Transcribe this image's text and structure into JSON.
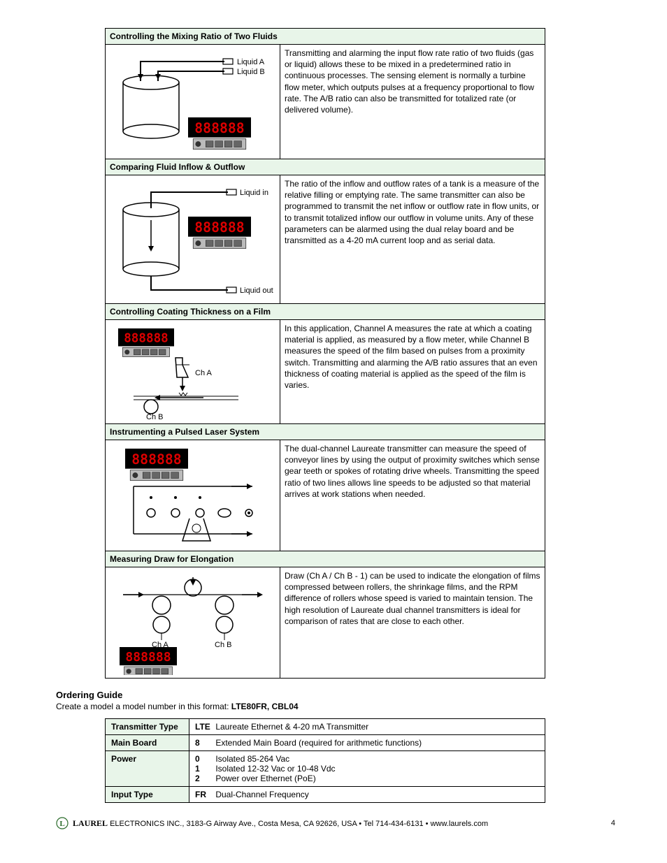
{
  "applications": [
    {
      "title": "Controlling the Mixing Ratio of Two Fluids",
      "diagram": "mixing",
      "description": "Transmitting and alarming the input flow rate ratio of two fluids (gas or liquid) allows these to be mixed in a predetermined ratio in continuous processes. The sensing element is normally a turbine flow meter, which outputs pulses at a frequency proportional to flow rate. The A/B ratio can also be transmitted for totalized rate (or delivered volume)."
    },
    {
      "title": "Comparing Fluid Inflow & Outflow",
      "diagram": "inflow",
      "description": "The ratio of the inflow and outflow rates of a tank is a measure of the relative filling or emptying rate. The same transmitter can also be programmed to transmit the net inflow or outflow rate in flow units, or to transmit totalized inflow our outflow in volume units. Any of these parameters can be alarmed using the dual relay board and be transmitted as a 4-20 mA current loop and as serial data."
    },
    {
      "title": "Controlling Coating Thickness on a Film",
      "diagram": "coating",
      "description": "In this application, Channel A measures the rate at which a coating material is applied, as measured by a flow meter, while Channel B measures the speed of the film based on pulses from a proximity switch. Transmitting and alarming the A/B ratio assures that an even thickness of coating material is applied as the speed of the film is varies."
    },
    {
      "title": "Instrumenting a Pulsed Laser System",
      "diagram": "laser",
      "description": "The dual-channel Laureate transmitter can measure the speed of conveyor lines by using the output of proximity switches which sense gear teeth or spokes of rotating drive wheels. Transmitting the speed ratio of two lines allows line speeds to be adjusted so that material arrives at work stations when needed."
    },
    {
      "title": "Measuring Draw for Elongation",
      "diagram": "draw",
      "description": "Draw (Ch A / Ch B - 1) can be used to indicate the elongation of films compressed between rollers, the shrinkage films, and the RPM difference of rollers whose speed is varied to maintain tension. The high resolution of Laureate dual channel transmitters is ideal for comparison of rates that are close to each other."
    }
  ],
  "diagram_labels": {
    "liquid_a": "Liquid A",
    "liquid_b": "Liquid B",
    "liquid_in": "Liquid in",
    "liquid_out": "Liquid out",
    "ch_a": "Ch A",
    "ch_b": "Ch B",
    "display": "888888"
  },
  "ordering": {
    "title": "Ordering Guide",
    "subtitle_prefix": "Create a model a model number in this format: ",
    "subtitle_code": "LTE80FR, CBL04",
    "rows": [
      {
        "label": "Transmitter Type",
        "options": [
          {
            "code": "LTE",
            "text": "Laureate Ethernet & 4-20 mA Transmitter"
          }
        ]
      },
      {
        "label": "Main Board",
        "options": [
          {
            "code": "8",
            "text": "Extended Main Board (required for arithmetic functions)"
          }
        ]
      },
      {
        "label": "Power",
        "options": [
          {
            "code": "0",
            "text": "Isolated 85-264 Vac"
          },
          {
            "code": "1",
            "text": "Isolated 12-32 Vac or 10-48 Vdc"
          },
          {
            "code": "2",
            "text": "Power over Ethernet (PoE)"
          }
        ]
      },
      {
        "label": "Input Type",
        "options": [
          {
            "code": "FR",
            "text": "Dual-Channel Frequency"
          }
        ]
      }
    ]
  },
  "footer": {
    "company": "LAUREL",
    "text": " ELECTRONICS INC., 3183-G Airway Ave., Costa Mesa, CA 92626, USA • Tel 714-434-6131 • www.laurels.com",
    "page": "4"
  },
  "colors": {
    "header_bg": "#e8f5e9",
    "border": "#000000",
    "display_bg": "#000000",
    "display_digits": "#cc0000"
  }
}
